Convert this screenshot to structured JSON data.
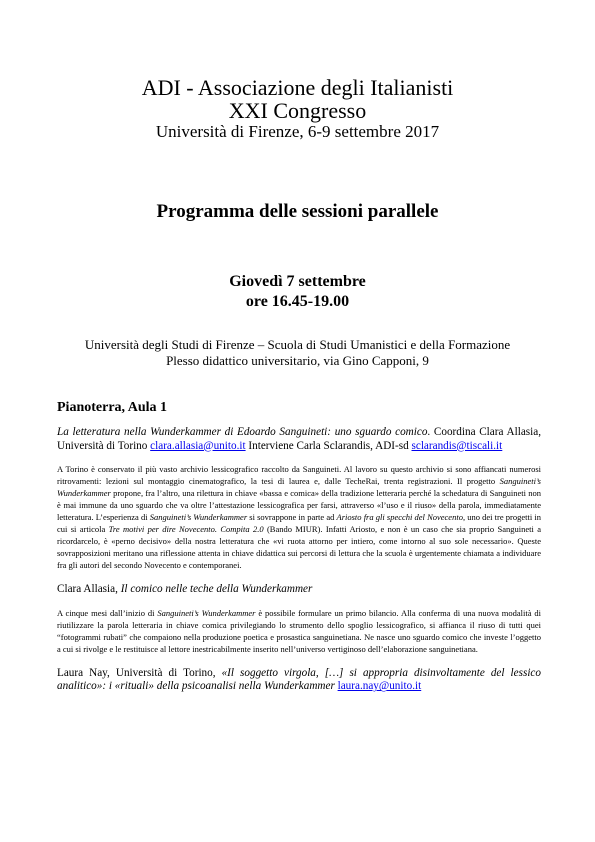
{
  "header": {
    "title": "ADI - Associazione degli Italianisti",
    "edition": "XXI Congresso",
    "place_date": "Università di Firenze, 6-9 settembre 2017"
  },
  "program_title": "Programma delle sessioni parallele",
  "schedule": {
    "day": "Giovedì 7 settembre",
    "time": "ore 16.45-19.00"
  },
  "venue": [
    "Università degli Studi di Firenze – Scuola di Studi Umanistici e della Formazione",
    "Plesso didattico universitario, via Gino Capponi, 9"
  ],
  "section": {
    "heading": "Pianoterra, Aula 1",
    "paragraphs": [
      [
        {
          "text": "La letteratura nella Wunderkammer di Edoardo Sanguineti: uno sguardo comico",
          "italic": true
        },
        ". Coordina Clara Allasia, Università di Torino ",
        {
          "text": "clara.allasia@unito.it",
          "link": true
        },
        " Interviene Carla Sclarandis, ADI-sd ",
        {
          "text": "sclarandis@tiscali.it",
          "link": true
        }
      ],
      [
        "A Torino è conservato il più vasto archivio lessicografico raccolto da Sanguineti. Al lavoro su questo archivio si sono affiancati numerosi ritrovamenti: lezioni sul montaggio cinematografico, la tesi di laurea e, dalle TecheRai, trenta registrazioni. Il progetto ",
        {
          "text": "Sanguineti’s Wunderkammer",
          "italic": true
        },
        " propone, fra l’altro, una rilettura in chiave «bassa e comica» della tradizione letteraria perché la schedatura di Sanguineti non è mai immune da uno sguardo che va oltre l’attestazione lessicografica per farsi, attraverso «l’uso e il riuso» della parola, immediatamente letteratura. L’esperienza di ",
        {
          "text": "Sanguineti’s Wunderkammer",
          "italic": true
        },
        " si sovrappone in parte ad ",
        {
          "text": "Ariosto fra gli specchi del Novecento",
          "italic": true
        },
        ", uno dei tre progetti in cui si articola ",
        {
          "text": "Tre motivi per dire Novecento. Compita 2.0",
          "italic": true
        },
        " (Bando MIUR). Infatti Ariosto, e non è un caso che sia proprio Sanguineti a ricordarcelo, è «perno decisivo» della nostra letteratura che «vi ruota attorno per intiero, come intorno al suo sole necessario». Queste sovrapposizioni meritano una riflessione attenta in chiave didattica sui percorsi di lettura che la scuola è urgentemente chiamata a individuare fra gli autori del secondo Novecento e contemporanei."
      ],
      [
        "Clara Allasia, ",
        {
          "text": "Il comico nelle teche della Wunderkammer",
          "italic": true
        }
      ],
      [
        "A cinque mesi dall’inizio di ",
        {
          "text": "Sanguineti’s Wunderkammer",
          "italic": true
        },
        " è possibile formulare un primo bilancio. Alla conferma di una nuova modalità di riutilizzare la parola letteraria in chiave comica privilegiando lo strumento dello spoglio lessicografico, si affianca il riuso di tutti quei “fotogrammi rubati” che compaiono nella produzione poetica e prosastica sanguinetiana. Ne nasce uno sguardo comico che investe l’oggetto a cui si rivolge e le restituisce al lettore inestricabilmente inserito nell’universo vertiginoso dell’elaborazione sanguinetiana."
      ],
      [
        "Laura Nay, Università di Torino, ",
        {
          "text": "«Il soggetto virgola, […] si appropria disinvoltamente del lessico analitico»: i «rituali» della psicoanalisi nella Wunderkammer",
          "italic": true
        },
        " ",
        {
          "text": "laura.nay@unito.it",
          "link": true
        }
      ]
    ]
  }
}
